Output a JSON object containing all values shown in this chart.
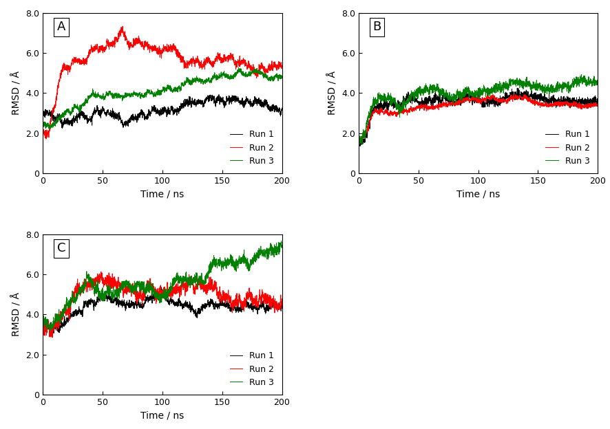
{
  "panels": [
    "A",
    "B",
    "C"
  ],
  "xlabel": "Time / ns",
  "ylabel": "RMSD / Å",
  "xlim": [
    0,
    200
  ],
  "ylim": [
    0,
    8.0
  ],
  "yticks": [
    0,
    2.0,
    4.0,
    6.0,
    8.0
  ],
  "ytick_labels": [
    "0",
    "2.0",
    "4.0",
    "6.0",
    "8.0"
  ],
  "xticks": [
    0,
    50,
    100,
    150,
    200
  ],
  "colors": [
    "black",
    "red",
    "green"
  ],
  "legend_labels": [
    "Run 1",
    "Run 2",
    "Run 3"
  ],
  "linewidth": 0.7,
  "background_color": "#ffffff",
  "label_fontsize": 10,
  "tick_fontsize": 9,
  "legend_fontsize": 9
}
